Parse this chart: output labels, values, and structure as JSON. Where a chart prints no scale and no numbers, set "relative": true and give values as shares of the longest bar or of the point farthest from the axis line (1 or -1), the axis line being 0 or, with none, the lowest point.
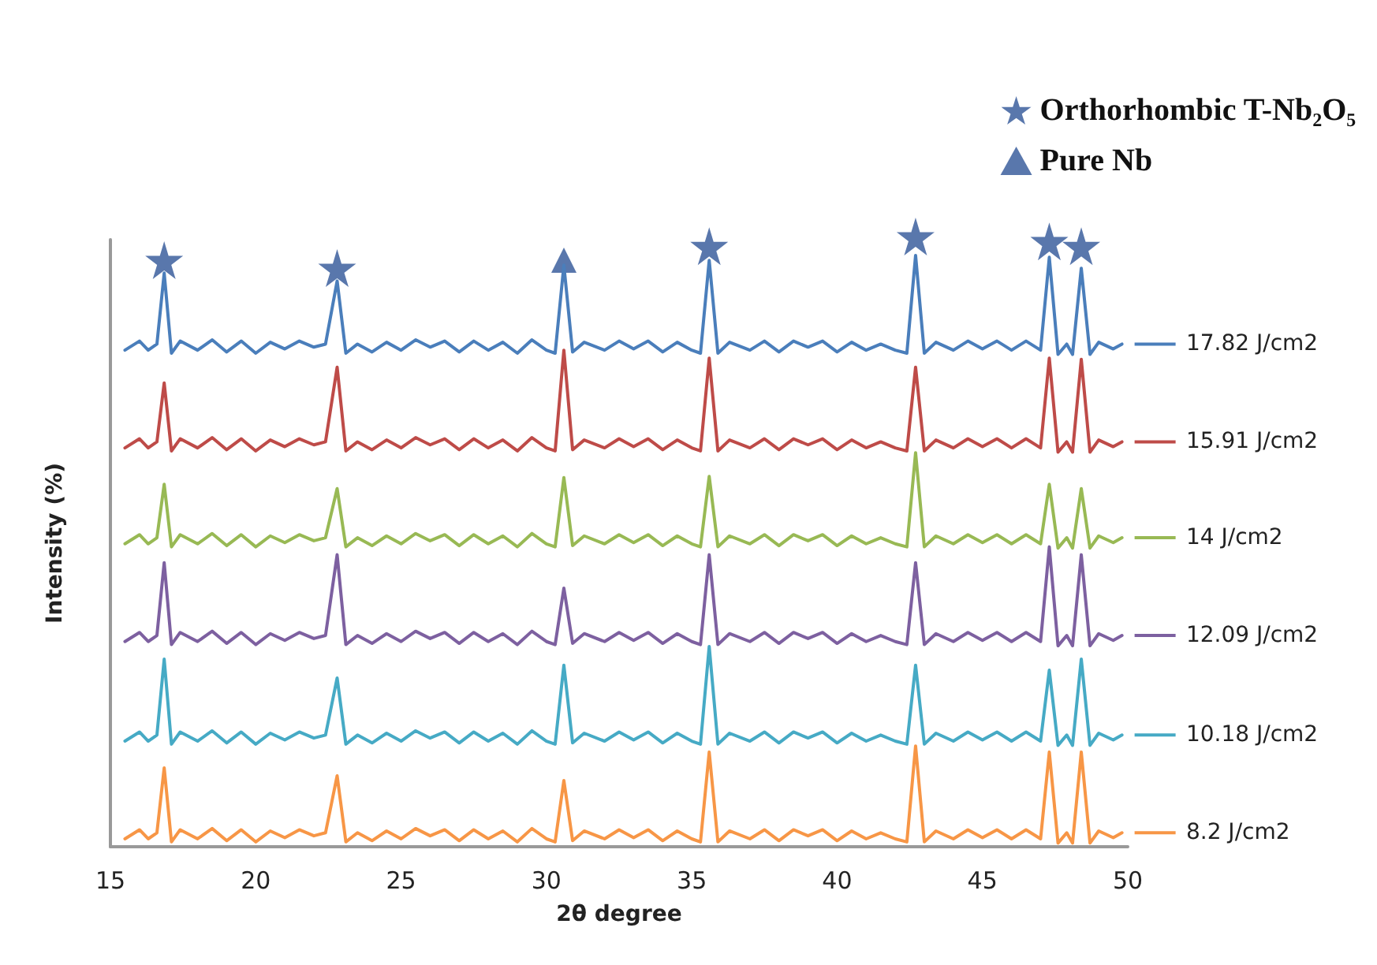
{
  "chart_data": {
    "type": "line",
    "xlabel": "2θ degree",
    "ylabel": "Intensity (%)",
    "relative": true,
    "xlim": [
      15,
      50
    ],
    "xticks": [
      15,
      20,
      25,
      30,
      35,
      40,
      45,
      50
    ],
    "grid": false,
    "legend": "top right",
    "marker": "none",
    "line_style": "solid",
    "x": [
      15.5,
      16,
      16.3,
      16.6,
      16.85,
      17.1,
      17.4,
      18,
      18.5,
      19,
      19.5,
      20,
      20.5,
      21,
      21.5,
      22,
      22.4,
      22.8,
      23.1,
      23.5,
      24,
      24.5,
      25,
      25.5,
      26,
      26.5,
      27,
      27.5,
      28,
      28.5,
      29,
      29.5,
      30,
      30.3,
      30.6,
      30.9,
      31.3,
      32,
      32.5,
      33,
      33.5,
      34,
      34.5,
      35,
      35.3,
      35.6,
      35.9,
      36.3,
      37,
      37.5,
      38,
      38.5,
      39,
      39.5,
      40,
      40.5,
      41,
      41.5,
      42,
      42.4,
      42.7,
      43,
      43.4,
      44,
      44.5,
      45,
      45.5,
      46,
      46.5,
      47,
      47.3,
      47.6,
      47.9,
      48.1,
      48.4,
      48.7,
      49,
      49.5,
      49.8
    ],
    "series": [
      {
        "name": "17.82 J/cm2",
        "color": "#4a7ebb",
        "values": [
          0.818,
          0.833,
          0.818,
          0.828,
          0.945,
          0.813,
          0.833,
          0.818,
          0.835,
          0.815,
          0.833,
          0.813,
          0.831,
          0.82,
          0.833,
          0.823,
          0.828,
          0.932,
          0.813,
          0.828,
          0.815,
          0.831,
          0.818,
          0.835,
          0.823,
          0.833,
          0.815,
          0.833,
          0.818,
          0.831,
          0.813,
          0.835,
          0.818,
          0.813,
          0.958,
          0.815,
          0.831,
          0.818,
          0.833,
          0.82,
          0.833,
          0.815,
          0.831,
          0.818,
          0.813,
          0.966,
          0.813,
          0.831,
          0.818,
          0.833,
          0.815,
          0.833,
          0.823,
          0.833,
          0.815,
          0.831,
          0.818,
          0.828,
          0.818,
          0.813,
          0.974,
          0.813,
          0.831,
          0.818,
          0.833,
          0.82,
          0.833,
          0.818,
          0.833,
          0.818,
          0.971,
          0.811,
          0.828,
          0.811,
          0.953,
          0.811,
          0.831,
          0.82,
          0.828
        ]
      },
      {
        "name": "15.91 J/cm2",
        "color": "#be4b48",
        "values": [
          0.657,
          0.672,
          0.657,
          0.667,
          0.764,
          0.652,
          0.672,
          0.657,
          0.674,
          0.654,
          0.672,
          0.652,
          0.67,
          0.659,
          0.672,
          0.662,
          0.667,
          0.79,
          0.652,
          0.667,
          0.654,
          0.67,
          0.657,
          0.674,
          0.662,
          0.672,
          0.654,
          0.672,
          0.657,
          0.67,
          0.652,
          0.674,
          0.657,
          0.652,
          0.818,
          0.654,
          0.67,
          0.657,
          0.672,
          0.659,
          0.672,
          0.654,
          0.67,
          0.657,
          0.652,
          0.805,
          0.652,
          0.67,
          0.657,
          0.672,
          0.654,
          0.672,
          0.662,
          0.672,
          0.654,
          0.67,
          0.657,
          0.667,
          0.657,
          0.652,
          0.79,
          0.652,
          0.67,
          0.657,
          0.672,
          0.659,
          0.672,
          0.657,
          0.672,
          0.657,
          0.805,
          0.65,
          0.667,
          0.65,
          0.803,
          0.65,
          0.67,
          0.659,
          0.667
        ]
      },
      {
        "name": "14 J/cm2",
        "color": "#98b954",
        "values": [
          0.499,
          0.514,
          0.499,
          0.509,
          0.597,
          0.494,
          0.514,
          0.499,
          0.516,
          0.496,
          0.514,
          0.494,
          0.512,
          0.501,
          0.514,
          0.504,
          0.509,
          0.59,
          0.494,
          0.509,
          0.496,
          0.512,
          0.499,
          0.516,
          0.504,
          0.514,
          0.496,
          0.514,
          0.499,
          0.512,
          0.494,
          0.516,
          0.499,
          0.494,
          0.608,
          0.496,
          0.512,
          0.499,
          0.514,
          0.501,
          0.514,
          0.496,
          0.512,
          0.499,
          0.494,
          0.61,
          0.494,
          0.512,
          0.499,
          0.514,
          0.496,
          0.514,
          0.504,
          0.514,
          0.496,
          0.512,
          0.499,
          0.509,
          0.499,
          0.494,
          0.649,
          0.494,
          0.512,
          0.499,
          0.514,
          0.501,
          0.514,
          0.499,
          0.514,
          0.499,
          0.597,
          0.492,
          0.509,
          0.492,
          0.59,
          0.492,
          0.512,
          0.501,
          0.509
        ]
      },
      {
        "name": "12.09 J/cm2",
        "color": "#7d60a0",
        "values": [
          0.338,
          0.353,
          0.338,
          0.348,
          0.468,
          0.333,
          0.353,
          0.338,
          0.355,
          0.335,
          0.353,
          0.333,
          0.351,
          0.34,
          0.353,
          0.343,
          0.348,
          0.481,
          0.333,
          0.348,
          0.335,
          0.351,
          0.338,
          0.355,
          0.343,
          0.353,
          0.335,
          0.353,
          0.338,
          0.351,
          0.333,
          0.355,
          0.338,
          0.333,
          0.426,
          0.335,
          0.351,
          0.338,
          0.353,
          0.34,
          0.353,
          0.335,
          0.351,
          0.338,
          0.333,
          0.481,
          0.333,
          0.351,
          0.338,
          0.353,
          0.335,
          0.353,
          0.343,
          0.353,
          0.335,
          0.351,
          0.338,
          0.348,
          0.338,
          0.333,
          0.468,
          0.333,
          0.351,
          0.338,
          0.353,
          0.34,
          0.353,
          0.338,
          0.353,
          0.338,
          0.494,
          0.331,
          0.348,
          0.331,
          0.481,
          0.331,
          0.351,
          0.34,
          0.348
        ]
      },
      {
        "name": "10.18 J/cm2",
        "color": "#46aac5",
        "values": [
          0.174,
          0.189,
          0.174,
          0.184,
          0.309,
          0.169,
          0.189,
          0.174,
          0.191,
          0.171,
          0.189,
          0.169,
          0.187,
          0.176,
          0.189,
          0.179,
          0.184,
          0.278,
          0.169,
          0.184,
          0.171,
          0.187,
          0.174,
          0.191,
          0.179,
          0.189,
          0.171,
          0.189,
          0.174,
          0.187,
          0.169,
          0.191,
          0.174,
          0.169,
          0.299,
          0.171,
          0.187,
          0.174,
          0.189,
          0.176,
          0.189,
          0.171,
          0.187,
          0.174,
          0.169,
          0.33,
          0.169,
          0.187,
          0.174,
          0.189,
          0.171,
          0.189,
          0.179,
          0.189,
          0.171,
          0.187,
          0.174,
          0.184,
          0.174,
          0.169,
          0.299,
          0.169,
          0.187,
          0.174,
          0.189,
          0.176,
          0.189,
          0.174,
          0.189,
          0.174,
          0.291,
          0.167,
          0.184,
          0.167,
          0.309,
          0.167,
          0.187,
          0.176,
          0.184
        ]
      },
      {
        "name": "8.2 J/cm2",
        "color": "#f79646",
        "values": [
          0.013,
          0.028,
          0.013,
          0.023,
          0.13,
          0.008,
          0.028,
          0.013,
          0.03,
          0.01,
          0.028,
          0.008,
          0.026,
          0.015,
          0.028,
          0.018,
          0.023,
          0.117,
          0.008,
          0.023,
          0.01,
          0.026,
          0.013,
          0.03,
          0.018,
          0.028,
          0.01,
          0.028,
          0.013,
          0.026,
          0.008,
          0.03,
          0.013,
          0.008,
          0.109,
          0.01,
          0.026,
          0.013,
          0.028,
          0.015,
          0.028,
          0.01,
          0.026,
          0.013,
          0.008,
          0.156,
          0.008,
          0.026,
          0.013,
          0.028,
          0.01,
          0.028,
          0.018,
          0.028,
          0.01,
          0.026,
          0.013,
          0.023,
          0.013,
          0.008,
          0.166,
          0.008,
          0.026,
          0.013,
          0.028,
          0.015,
          0.028,
          0.013,
          0.028,
          0.013,
          0.156,
          0.006,
          0.023,
          0.006,
          0.156,
          0.006,
          0.026,
          0.015,
          0.023
        ]
      },
      {
        "name": "Orthorhombic T-Nb₂O₅",
        "type": "scatter",
        "marker": "star",
        "color": "#2f5597",
        "x": [
          16.85,
          22.8,
          35.6,
          42.7,
          47.3,
          48.4
        ],
        "values": [
          0.961,
          0.948,
          0.984,
          1.0,
          0.992,
          0.984
        ]
      },
      {
        "name": "Pure Nb",
        "type": "scatter",
        "marker": "triangle",
        "color": "#2f5597",
        "x": [
          30.6
        ],
        "values": [
          0.961
        ]
      }
    ]
  }
}
